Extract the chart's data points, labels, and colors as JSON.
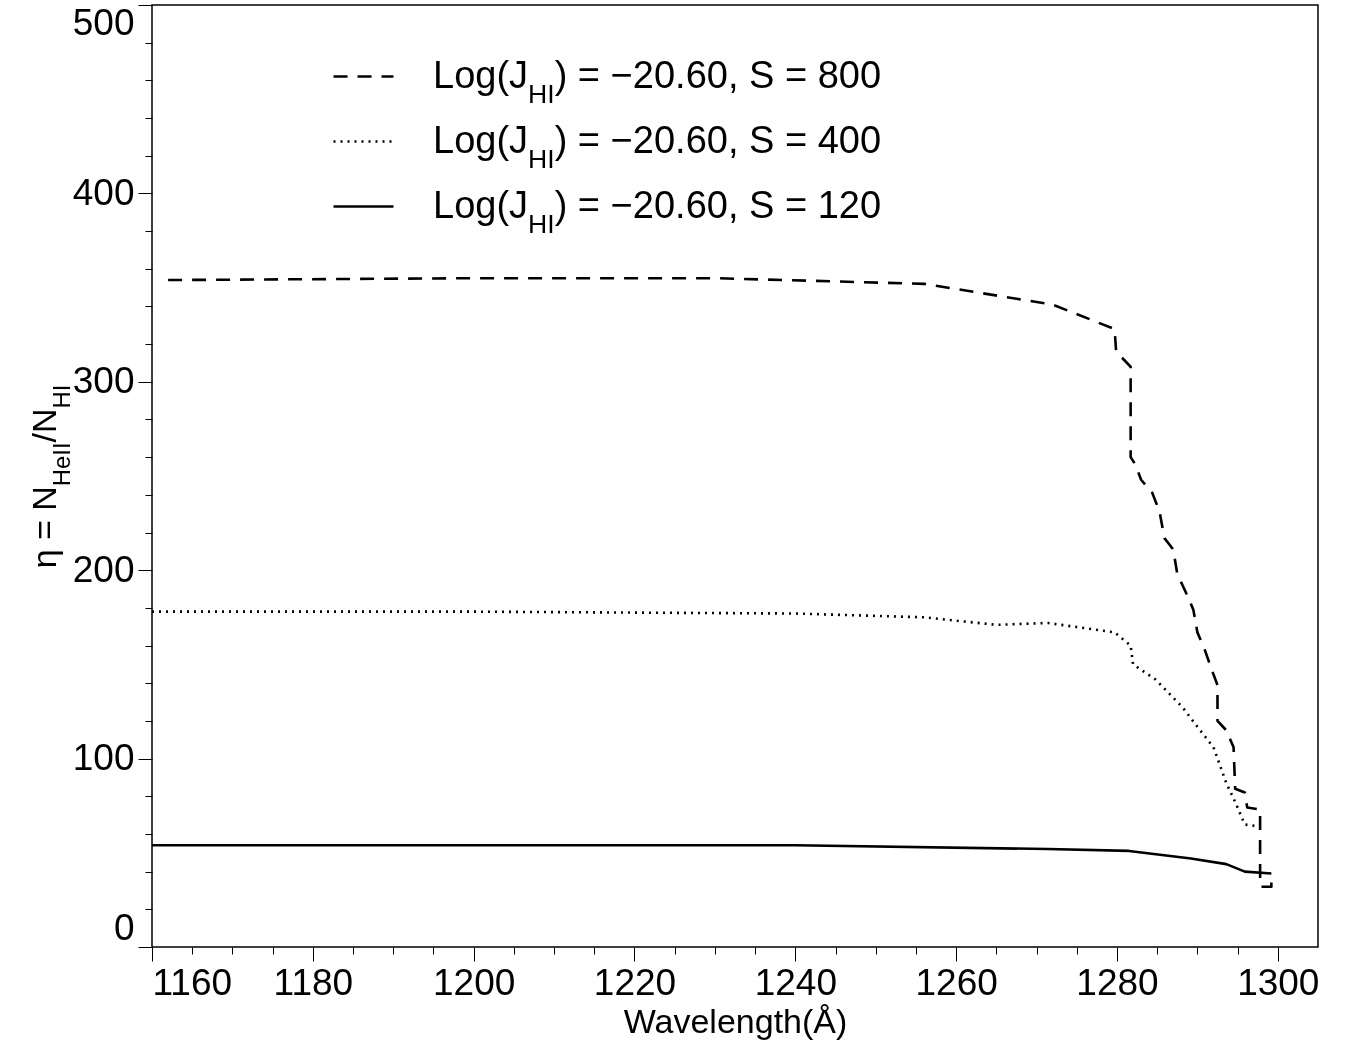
{
  "chart_data": {
    "type": "line",
    "xlabel": "Wavelength(Å)",
    "ylabel": "η = N$_{HeII}$/N$_{HI}$",
    "xlim": [
      1160,
      1305
    ],
    "ylim": [
      0,
      500
    ],
    "xticks": [
      1160,
      {
        "value": 1165,
        "label": null
      },
      {
        "value": 1170,
        "label": null
      },
      {
        "value": 1175,
        "label": null
      },
      1180,
      {
        "value": 1185,
        "label": null
      },
      {
        "value": 1190,
        "label": null
      },
      {
        "value": 1195,
        "label": null
      },
      1200,
      {
        "value": 1205,
        "label": null
      },
      {
        "value": 1210,
        "label": null
      },
      {
        "value": 1215,
        "label": null
      },
      1220,
      {
        "value": 1225,
        "label": null
      },
      {
        "value": 1230,
        "label": null
      },
      {
        "value": 1235,
        "label": null
      },
      1240,
      {
        "value": 1245,
        "label": null
      },
      {
        "value": 1250,
        "label": null
      },
      {
        "value": 1255,
        "label": null
      },
      1260,
      {
        "value": 1265,
        "label": null
      },
      {
        "value": 1270,
        "label": null
      },
      {
        "value": 1275,
        "label": null
      },
      1280,
      {
        "value": 1285,
        "label": null
      },
      {
        "value": 1290,
        "label": null
      },
      {
        "value": 1295,
        "label": null
      },
      1300
    ],
    "yticks": [
      0,
      {
        "value": 20,
        "label": null
      },
      {
        "value": 40,
        "label": null
      },
      {
        "value": 60,
        "label": null
      },
      {
        "value": 80,
        "label": null
      },
      100,
      {
        "value": 120,
        "label": null
      },
      {
        "value": 140,
        "label": null
      },
      {
        "value": 160,
        "label": null
      },
      {
        "value": 180,
        "label": null
      },
      200,
      {
        "value": 220,
        "label": null
      },
      {
        "value": 240,
        "label": null
      },
      {
        "value": 260,
        "label": null
      },
      {
        "value": 280,
        "label": null
      },
      300,
      {
        "value": 320,
        "label": null
      },
      {
        "value": 340,
        "label": null
      },
      {
        "value": 360,
        "label": null
      },
      {
        "value": 380,
        "label": null
      },
      400,
      {
        "value": 420,
        "label": null
      },
      {
        "value": 440,
        "label": null
      },
      {
        "value": 460,
        "label": null
      },
      {
        "value": 480,
        "label": null
      },
      500
    ],
    "grid": false,
    "legend": "top left",
    "marker": "none",
    "series": [
      {
        "name": "Log(J$_{HI}$) = −20.60, S =  800",
        "color": "#000000",
        "line_style": "dashed",
        "x": [
          1162,
          1200,
          1230,
          1256,
          1272,
          1279.7,
          1279.9,
          1281.7,
          1281.7,
          1282.3,
          1283,
          1284.4,
          1285.3,
          1285.9,
          1287,
          1287.5,
          1288.7,
          1289.5,
          1290,
          1290.9,
          1291.8,
          1292.5,
          1292.5,
          1293.6,
          1294.5,
          1294.7,
          1295.9,
          1296.2,
          1297.8,
          1297.8,
          1299.2,
          1299.2
        ],
        "values": [
          354,
          355,
          355,
          352,
          341,
          328,
          316,
          308,
          260,
          256,
          248,
          241,
          231,
          217,
          211,
          198,
          187,
          179,
          167,
          158,
          147,
          139,
          120,
          115,
          106,
          84,
          82,
          74,
          73,
          32,
          32,
          39
        ]
      },
      {
        "name": "Log(J$_{HI}$) = −20.60, S =  400",
        "color": "#000000",
        "line_style": "dotted",
        "x": [
          1160,
          1200,
          1240,
          1256,
          1265,
          1271.4,
          1279.7,
          1281.7,
          1282,
          1284.8,
          1288.2,
          1289.8,
          1292,
          1293.6,
          1294.7,
          1295.9,
          1297.6
        ],
        "values": [
          178,
          178,
          177,
          175,
          171,
          172,
          167,
          160,
          150,
          142,
          127,
          118,
          106,
          87,
          77,
          65,
          64
        ]
      },
      {
        "name": "Log(J$_{HI}$) = −20.60, S =  120",
        "color": "#000000",
        "line_style": "solid",
        "x": [
          1160,
          1200,
          1240,
          1271.4,
          1281.5,
          1289.2,
          1293.6,
          1295.9,
          1299.2
        ],
        "values": [
          54,
          54,
          54,
          52,
          51,
          47,
          44,
          40,
          39
        ]
      }
    ]
  }
}
